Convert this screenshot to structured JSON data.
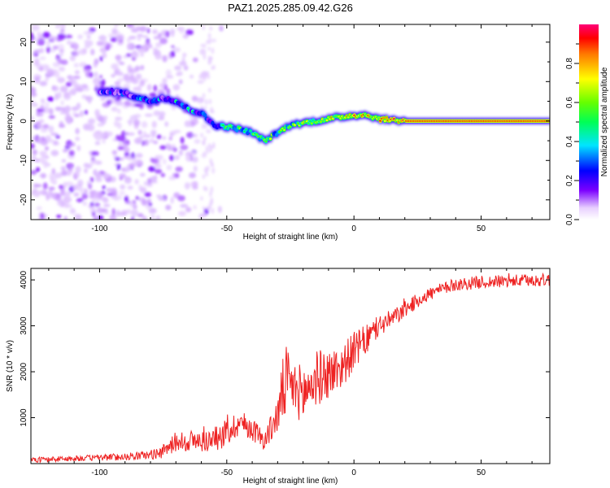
{
  "title": "PAZ1.2025.285.09.42.G26",
  "colors": {
    "snr_line": "#ee2222",
    "ridge_low": "#8a2be2",
    "ridge_high": "#ff0000"
  },
  "chart_data": [
    {
      "type": "heatmap",
      "name": "spectrogram",
      "xlabel": "Height of straight line (km)",
      "ylabel": "Frequency (Hz)",
      "xlim": [
        -127,
        77
      ],
      "ylim": [
        -25,
        24.5
      ],
      "xticks": [
        -100,
        -50,
        0,
        50
      ],
      "yticks": [
        20,
        10,
        0,
        -10,
        -20
      ],
      "ridge": {
        "x": [
          -100,
          -95,
          -90,
          -85,
          -80,
          -75,
          -70,
          -65,
          -60,
          -55,
          -50,
          -45,
          -40,
          -35,
          -30,
          -25,
          -20,
          -15,
          -10,
          -5,
          0,
          5,
          10,
          15,
          20,
          30,
          40,
          50,
          60,
          70,
          77
        ],
        "frequency": [
          7,
          7.5,
          7,
          6,
          5,
          6,
          5,
          3,
          2,
          -1,
          -1.5,
          -2,
          -3,
          -5,
          -3,
          -1,
          -0.5,
          0,
          0.5,
          1,
          1.5,
          1.5,
          0.5,
          0.3,
          0,
          0,
          0,
          0,
          0,
          0,
          0
        ],
        "amplitude": [
          0.25,
          0.2,
          0.25,
          0.3,
          0.35,
          0.3,
          0.4,
          0.4,
          0.3,
          0.35,
          0.5,
          0.55,
          0.5,
          0.6,
          0.5,
          0.55,
          0.6,
          0.65,
          0.7,
          0.75,
          0.8,
          0.75,
          0.8,
          0.85,
          0.9,
          0.9,
          0.9,
          0.9,
          0.9,
          0.9,
          0.9
        ]
      },
      "colorbar": {
        "label": "Normalized spectral amplitude",
        "range": [
          0,
          1
        ],
        "ticks": [
          "0.0",
          "0.2",
          "0.4",
          "0.6",
          "0.8"
        ]
      }
    },
    {
      "type": "line",
      "name": "snr",
      "xlabel": "Height of straight line (km)",
      "ylabel": "SNR (10 * v/v)",
      "xlim": [
        -127,
        77
      ],
      "ylim": [
        0,
        4250
      ],
      "xticks": [
        -100,
        -50,
        0,
        50
      ],
      "yticks": [
        1000,
        2000,
        3000,
        4000
      ],
      "series": [
        {
          "name": "SNR",
          "x": [
            -127,
            -120,
            -110,
            -100,
            -90,
            -80,
            -75,
            -70,
            -65,
            -60,
            -55,
            -50,
            -45,
            -40,
            -35,
            -30,
            -27,
            -25,
            -20,
            -15,
            -10,
            -5,
            0,
            5,
            10,
            15,
            20,
            25,
            30,
            35,
            40,
            45,
            50,
            55,
            60,
            65,
            70,
            77
          ],
          "y": [
            80,
            90,
            110,
            130,
            150,
            190,
            260,
            480,
            500,
            480,
            520,
            680,
            900,
            760,
            500,
            1050,
            1800,
            1700,
            1500,
            1850,
            1950,
            2100,
            2450,
            2700,
            3000,
            3150,
            3350,
            3550,
            3700,
            3800,
            3900,
            3920,
            3950,
            3960,
            3970,
            3980,
            3990,
            4000
          ],
          "noise": [
            60,
            60,
            60,
            70,
            80,
            100,
            150,
            220,
            250,
            230,
            260,
            320,
            280,
            260,
            220,
            400,
            900,
            550,
            650,
            620,
            550,
            480,
            420,
            330,
            250,
            200,
            180,
            160,
            150,
            140,
            140,
            140,
            140,
            140,
            140,
            140,
            140,
            140
          ]
        }
      ]
    }
  ]
}
